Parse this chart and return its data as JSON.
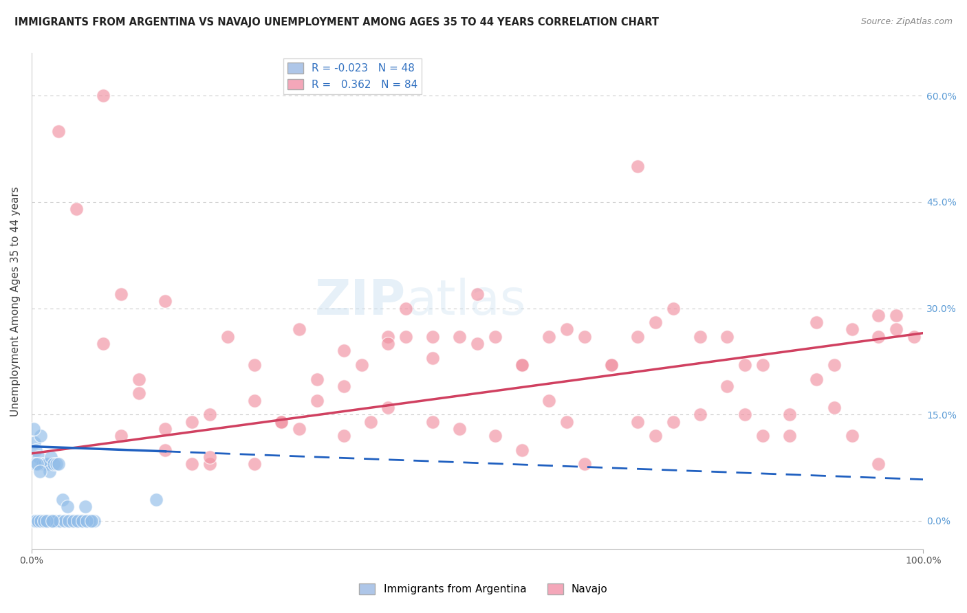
{
  "title": "IMMIGRANTS FROM ARGENTINA VS NAVAJO UNEMPLOYMENT AMONG AGES 35 TO 44 YEARS CORRELATION CHART",
  "source": "Source: ZipAtlas.com",
  "ylabel": "Unemployment Among Ages 35 to 44 years",
  "xlim": [
    0,
    100
  ],
  "ylim": [
    -4,
    66
  ],
  "yticks": [
    0,
    15,
    30,
    45,
    60
  ],
  "ytick_labels": [
    "0.0%",
    "15.0%",
    "30.0%",
    "45.0%",
    "60.0%"
  ],
  "xtick_labels": [
    "0.0%",
    "100.0%"
  ],
  "background_color": "#ffffff",
  "grid_color": "#cccccc",
  "argentina_color": "#90bce8",
  "navajo_color": "#f090a0",
  "argentina_line_color": "#2060c0",
  "navajo_line_color": "#d04060",
  "navajo_scatter_x": [
    3,
    8,
    12,
    15,
    18,
    20,
    22,
    25,
    28,
    30,
    32,
    35,
    37,
    40,
    42,
    45,
    48,
    50,
    52,
    55,
    58,
    60,
    62,
    65,
    68,
    70,
    72,
    75,
    78,
    80,
    82,
    85,
    88,
    90,
    92,
    95,
    97,
    99,
    5,
    8,
    10,
    15,
    18,
    20,
    25,
    28,
    32,
    35,
    38,
    40,
    42,
    45,
    48,
    52,
    55,
    58,
    62,
    65,
    68,
    70,
    72,
    75,
    78,
    80,
    82,
    85,
    88,
    90,
    92,
    95,
    97,
    10,
    12,
    15,
    20,
    25,
    30,
    35,
    40,
    45,
    50,
    55,
    60,
    68,
    95
  ],
  "navajo_scatter_y": [
    55,
    60,
    18,
    13,
    14,
    8,
    26,
    22,
    14,
    27,
    20,
    19,
    22,
    26,
    30,
    26,
    26,
    32,
    26,
    22,
    26,
    27,
    26,
    22,
    26,
    28,
    30,
    26,
    26,
    22,
    22,
    15,
    28,
    22,
    27,
    29,
    27,
    26,
    44,
    25,
    12,
    10,
    8,
    9,
    17,
    14,
    17,
    12,
    14,
    16,
    26,
    14,
    13,
    12,
    10,
    17,
    8,
    22,
    14,
    12,
    14,
    15,
    19,
    15,
    12,
    12,
    20,
    16,
    12,
    8,
    29,
    32,
    20,
    31,
    15,
    8,
    13,
    24,
    25,
    23,
    25,
    22,
    14,
    50,
    26
  ],
  "argentina_scatter_x": [
    0.3,
    0.5,
    0.8,
    1.0,
    1.2,
    1.5,
    1.8,
    2.0,
    2.2,
    2.5,
    2.8,
    3.0,
    3.5,
    4.0,
    4.5,
    5.0,
    5.5,
    6.0,
    6.5,
    7.0,
    0.2,
    0.4,
    0.6,
    0.9,
    1.1,
    1.3,
    1.6,
    1.9,
    2.1,
    2.4,
    2.7,
    3.2,
    3.7,
    4.2,
    4.7,
    5.2,
    5.7,
    6.2,
    6.7,
    0.1,
    0.3,
    0.5,
    0.7,
    1.0,
    1.4,
    1.7,
    2.3,
    14.0
  ],
  "argentina_scatter_y": [
    11,
    10,
    9,
    12,
    8,
    8,
    8,
    7,
    9,
    8,
    8,
    8,
    3,
    2,
    0,
    0,
    0,
    2,
    0,
    0,
    13,
    8,
    8,
    7,
    0,
    0,
    0,
    0,
    0,
    0,
    0,
    0,
    0,
    0,
    0,
    0,
    0,
    0,
    0,
    0,
    0,
    0,
    0,
    0,
    0,
    0,
    0,
    3
  ],
  "arg_line_x0": 0,
  "arg_line_x1": 15,
  "arg_line_y0": 10.5,
  "arg_line_y1": 9.8,
  "navajo_line_x0": 0,
  "navajo_line_x1": 100,
  "navajo_line_y0": 9.5,
  "navajo_line_y1": 26.5
}
